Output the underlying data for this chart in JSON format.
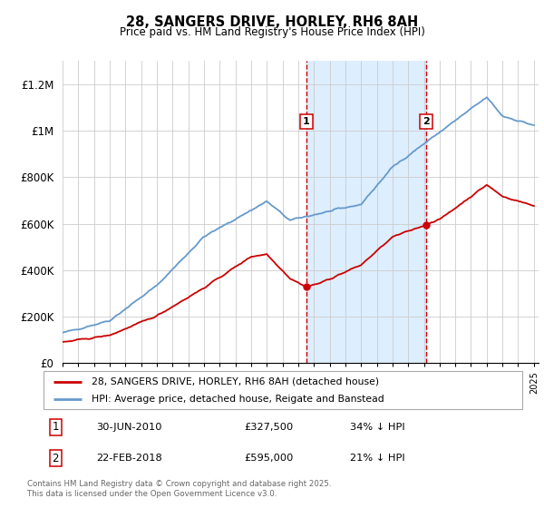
{
  "title": "28, SANGERS DRIVE, HORLEY, RH6 8AH",
  "subtitle": "Price paid vs. HM Land Registry's House Price Index (HPI)",
  "ylim": [
    0,
    1300000
  ],
  "yticks": [
    0,
    200000,
    400000,
    600000,
    800000,
    1000000,
    1200000
  ],
  "ytick_labels": [
    "£0",
    "£200K",
    "£400K",
    "£600K",
    "£800K",
    "£1M",
    "£1.2M"
  ],
  "x_start_year": 1995,
  "x_end_year": 2025,
  "transaction1_date": 2010.5,
  "transaction1_price": 327500,
  "transaction2_date": 2018.12,
  "transaction2_price": 595000,
  "legend_red": "28, SANGERS DRIVE, HORLEY, RH6 8AH (detached house)",
  "legend_blue": "HPI: Average price, detached house, Reigate and Banstead",
  "note1_label": "1",
  "note1_date": "30-JUN-2010",
  "note1_price": "£327,500",
  "note1_change": "34% ↓ HPI",
  "note2_label": "2",
  "note2_date": "22-FEB-2018",
  "note2_price": "£595,000",
  "note2_change": "21% ↓ HPI",
  "footer": "Contains HM Land Registry data © Crown copyright and database right 2025.\nThis data is licensed under the Open Government Licence v3.0.",
  "red_color": "#cc0000",
  "blue_color": "#6699cc",
  "shade_color": "#ddeeff",
  "grid_color": "#cccccc"
}
